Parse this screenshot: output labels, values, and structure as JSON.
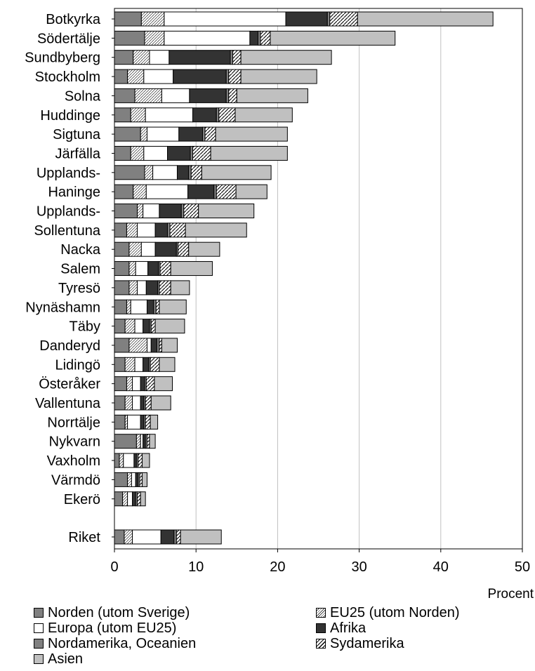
{
  "chart_data": {
    "type": "bar",
    "orientation": "horizontal",
    "stacked": true,
    "title": "",
    "xlabel": "Procent",
    "ylabel": "",
    "xlim": [
      0,
      50
    ],
    "xticks": [
      0,
      10,
      20,
      30,
      40,
      50
    ],
    "grid": "vertical",
    "legend_position": "bottom",
    "categories": [
      "Botkyrka",
      "Södertälje",
      "Sundbyberg",
      "Stockholm",
      "Solna",
      "Huddinge",
      "Sigtuna",
      "Järfälla",
      "Upplands-",
      "Haninge",
      "Upplands-",
      "Sollentuna",
      "Nacka",
      "Salem",
      "Tyresö",
      "Nynäshamn",
      "Täby",
      "Danderyd",
      "Lidingö",
      "Österåker",
      "Vallentuna",
      "Norrtälje",
      "Nykvarn",
      "Vaxholm",
      "Värmdö",
      "Ekerö",
      "Riket"
    ],
    "series": [
      {
        "name": "Norden (utom Sverige)",
        "color": "#808080",
        "pattern": "solid",
        "values": [
          3.3,
          3.7,
          2.3,
          1.6,
          2.5,
          2.0,
          3.2,
          2.0,
          3.7,
          2.3,
          2.8,
          1.5,
          1.8,
          1.8,
          1.8,
          1.5,
          1.3,
          1.8,
          1.3,
          1.5,
          1.3,
          1.3,
          2.7,
          0.6,
          1.6,
          1.0,
          1.2
        ]
      },
      {
        "name": "EU25 (utom Norden)",
        "color": "#ffffff",
        "pattern": "dots",
        "values": [
          2.8,
          2.4,
          2.0,
          2.0,
          3.3,
          1.8,
          0.8,
          1.6,
          1.0,
          1.6,
          0.7,
          1.3,
          1.5,
          0.8,
          1.0,
          0.5,
          1.2,
          2.2,
          1.2,
          0.7,
          0.9,
          0.3,
          0.5,
          0.5,
          0.5,
          0.6,
          1.0
        ]
      },
      {
        "name": "Europa (utom EU25)",
        "color": "#ffffff",
        "pattern": "solid",
        "values": [
          14.9,
          10.5,
          2.4,
          3.6,
          3.4,
          5.8,
          3.9,
          2.9,
          3.0,
          5.1,
          2.0,
          2.2,
          1.7,
          1.5,
          1.1,
          2.0,
          1.0,
          0.5,
          1.0,
          1.0,
          1.0,
          1.6,
          0.3,
          1.3,
          0.5,
          0.6,
          3.5
        ]
      },
      {
        "name": "Afrika",
        "color": "#333333",
        "pattern": "solid",
        "values": [
          5.1,
          1.0,
          7.5,
          6.5,
          4.5,
          2.9,
          2.9,
          2.8,
          1.4,
          3.2,
          2.7,
          1.5,
          2.6,
          1.3,
          1.4,
          0.8,
          0.8,
          0.7,
          0.7,
          0.5,
          0.4,
          0.4,
          0.3,
          0.3,
          0.3,
          0.4,
          1.6
        ]
      },
      {
        "name": "Nordamerika, Oceanien",
        "color": "#808080",
        "pattern": "solid",
        "values": [
          0.3,
          0.3,
          0.3,
          0.3,
          0.3,
          0.3,
          0.3,
          0.3,
          0.3,
          0.3,
          0.3,
          0.3,
          0.2,
          0.2,
          0.2,
          0.3,
          0.2,
          0.3,
          0.2,
          0.2,
          0.2,
          0.2,
          0.2,
          0.2,
          0.2,
          0.2,
          0.3
        ]
      },
      {
        "name": "Sydamerika",
        "color": "#ffffff",
        "pattern": "hatch",
        "values": [
          3.4,
          1.2,
          1.0,
          1.5,
          1.0,
          2.0,
          1.3,
          2.2,
          1.3,
          2.4,
          1.8,
          1.9,
          1.3,
          1.3,
          1.4,
          0.4,
          0.5,
          0.3,
          1.1,
          1.0,
          0.7,
          0.6,
          0.3,
          0.5,
          0.3,
          0.4,
          0.5
        ]
      },
      {
        "name": "Asien",
        "color": "#c0c0c0",
        "pattern": "solid",
        "values": [
          16.6,
          15.3,
          11.1,
          9.3,
          8.7,
          7.0,
          8.8,
          9.4,
          8.5,
          3.8,
          6.8,
          7.5,
          3.8,
          5.1,
          2.3,
          3.3,
          3.6,
          1.9,
          1.9,
          2.2,
          2.4,
          0.9,
          0.7,
          0.9,
          0.6,
          0.6,
          5.0
        ]
      }
    ]
  }
}
